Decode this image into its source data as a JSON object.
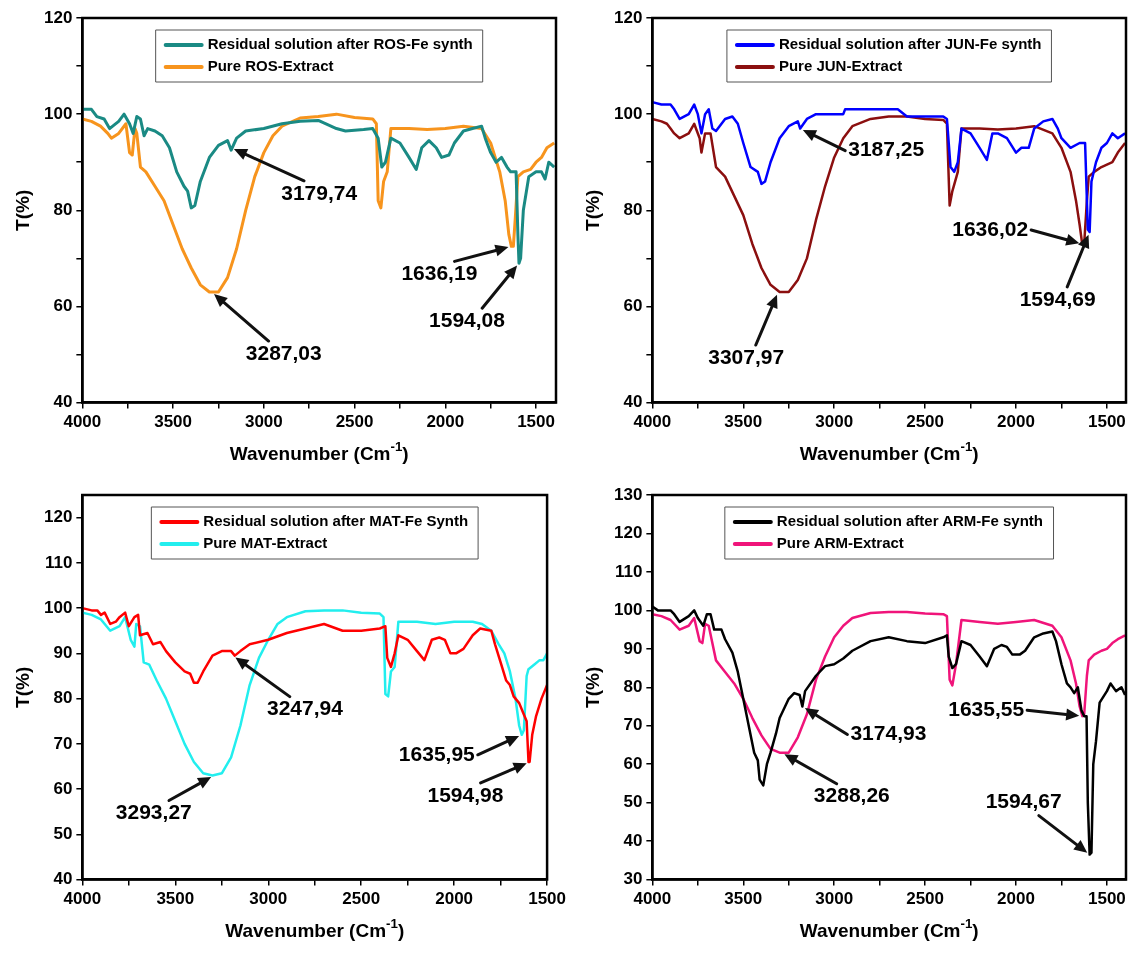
{
  "chart_data": [
    {
      "type": "line",
      "xlabel": "Wavenumber (Cm$^{-1}$)",
      "ylabel": "T(%)",
      "legend": "top",
      "xlim": [
        4000,
        1390
      ],
      "xticks": [
        4000,
        {
          "value": 3750,
          "label": null
        },
        3500,
        {
          "value": 3250,
          "label": null
        },
        3000,
        {
          "value": 2750,
          "label": null
        },
        2500,
        {
          "value": 2250,
          "label": null
        },
        2000,
        {
          "value": 1750,
          "label": null
        },
        1500
      ],
      "ylim": [
        40,
        120
      ],
      "yticks": [
        40,
        {
          "value": 50,
          "label": null
        },
        60,
        {
          "value": 70,
          "label": null
        },
        80,
        {
          "value": 90,
          "label": null
        },
        100,
        {
          "value": 110,
          "label": null
        },
        120
      ],
      "series": [
        {
          "name": "Residual solution after ROS-Fe synth",
          "color": "#1a8a84",
          "x": [
            4000,
            3950,
            3920,
            3880,
            3850,
            3800,
            3770,
            3740,
            3720,
            3700,
            3680,
            3660,
            3640,
            3600,
            3560,
            3520,
            3480,
            3440,
            3420,
            3400,
            3380,
            3350,
            3300,
            3250,
            3200,
            3180,
            3150,
            3100,
            3000,
            2900,
            2800,
            2700,
            2600,
            2550,
            2450,
            2400,
            2370,
            2350,
            2330,
            2300,
            2250,
            2200,
            2160,
            2130,
            2090,
            2050,
            2020,
            1980,
            1950,
            1900,
            1850,
            1800,
            1780,
            1750,
            1720,
            1690,
            1660,
            1640,
            1610,
            1600,
            1594,
            1585,
            1570,
            1540,
            1500,
            1470,
            1450,
            1430,
            1400
          ],
          "values": [
            101,
            101,
            99.5,
            99,
            97,
            98.5,
            100,
            98,
            96,
            99.5,
            99,
            95.5,
            97,
            96.5,
            95.5,
            93,
            88,
            85,
            84,
            80.5,
            81,
            86,
            91,
            93.5,
            94.5,
            92.5,
            95,
            96.5,
            97,
            98,
            98.5,
            98.7,
            97,
            96.5,
            96.8,
            97,
            95,
            89,
            90,
            95,
            94,
            91,
            88.5,
            93,
            94.5,
            93,
            91,
            91.5,
            94,
            96.5,
            97,
            97.5,
            95,
            92,
            90,
            91,
            89,
            88,
            88,
            75,
            69,
            70,
            80,
            87,
            88,
            88,
            86.5,
            90,
            89
          ]
        },
        {
          "name": "Pure ROS-Extract",
          "color": "#f7941d",
          "x": [
            4000,
            3950,
            3900,
            3860,
            3840,
            3800,
            3760,
            3740,
            3725,
            3710,
            3700,
            3680,
            3650,
            3600,
            3550,
            3500,
            3450,
            3400,
            3350,
            3300,
            3250,
            3200,
            3150,
            3100,
            3050,
            3000,
            2950,
            2900,
            2800,
            2700,
            2600,
            2500,
            2400,
            2380,
            2370,
            2355,
            2340,
            2320,
            2300,
            2200,
            2100,
            2000,
            1900,
            1800,
            1750,
            1700,
            1670,
            1650,
            1636,
            1625,
            1615,
            1600,
            1570,
            1530,
            1500,
            1470,
            1440,
            1400
          ],
          "values": [
            99,
            98.5,
            97.5,
            96,
            95,
            96,
            98,
            92,
            91.5,
            97,
            96,
            89,
            88,
            85,
            82,
            77,
            72,
            68,
            64.5,
            63,
            63,
            66,
            72,
            80,
            87,
            92,
            95.5,
            97.5,
            99.2,
            99.5,
            100,
            99.3,
            99,
            98,
            82,
            80.5,
            86,
            88,
            97,
            97,
            96.8,
            97,
            97.5,
            97,
            94,
            88,
            82,
            75,
            72.5,
            72.5,
            78,
            87,
            88,
            88.5,
            90,
            91,
            93,
            94
          ]
        }
      ],
      "annotations": [
        {
          "text": "3179,74",
          "x": 3180,
          "y": 93
        },
        {
          "text": "3287,03",
          "x": 3287,
          "y": 63
        },
        {
          "text": "1636,19",
          "x": 1636,
          "y": 72.5
        },
        {
          "text": "1594,08",
          "x": 1594,
          "y": 69
        }
      ]
    },
    {
      "type": "line",
      "xlabel": "Wavenumber (Cm$^{-1}$)",
      "ylabel": "T(%)",
      "legend": "top",
      "xlim": [
        4000,
        1395
      ],
      "xticks": [
        4000,
        {
          "value": 3750,
          "label": null
        },
        3500,
        {
          "value": 3250,
          "label": null
        },
        3000,
        {
          "value": 2750,
          "label": null
        },
        2500,
        {
          "value": 2250,
          "label": null
        },
        2000,
        {
          "value": 1750,
          "label": null
        },
        1500
      ],
      "ylim": [
        40,
        120
      ],
      "yticks": [
        40,
        {
          "value": 50,
          "label": null
        },
        60,
        {
          "value": 70,
          "label": null
        },
        80,
        {
          "value": 90,
          "label": null
        },
        100,
        {
          "value": 110,
          "label": null
        },
        120
      ],
      "series": [
        {
          "name": "Residual solution after JUN-Fe synth",
          "color": "#0000ff",
          "x": [
            4000,
            3950,
            3900,
            3880,
            3850,
            3800,
            3770,
            3750,
            3730,
            3710,
            3690,
            3670,
            3650,
            3600,
            3560,
            3530,
            3500,
            3460,
            3420,
            3400,
            3380,
            3350,
            3300,
            3250,
            3200,
            3187,
            3150,
            3100,
            2950,
            2940,
            2650,
            2600,
            2400,
            2380,
            2360,
            2340,
            2320,
            2300,
            2250,
            2200,
            2160,
            2130,
            2100,
            2050,
            2000,
            1970,
            1930,
            1900,
            1850,
            1800,
            1770,
            1750,
            1700,
            1650,
            1620,
            1605,
            1595,
            1585,
            1560,
            1530,
            1500,
            1470,
            1440,
            1400
          ],
          "values": [
            102.5,
            102,
            102,
            101,
            99,
            100,
            102,
            100,
            96,
            100,
            101,
            97,
            96.5,
            99,
            99.5,
            98,
            94,
            89,
            88,
            85.5,
            86,
            90,
            95,
            97.5,
            98.5,
            97,
            99,
            100,
            100,
            101,
            101,
            99.5,
            99.5,
            99,
            89,
            88,
            90,
            97,
            96,
            93,
            90.5,
            96,
            96,
            95,
            92,
            93,
            93,
            97,
            98.5,
            99,
            97,
            95,
            93,
            94,
            94,
            76,
            75.5,
            86,
            90,
            93,
            94,
            96,
            95,
            96
          ]
        },
        {
          "name": "Pure JUN-Extract",
          "color": "#8b0f0f",
          "x": [
            4000,
            3950,
            3920,
            3900,
            3880,
            3850,
            3800,
            3770,
            3740,
            3730,
            3710,
            3680,
            3650,
            3600,
            3550,
            3500,
            3450,
            3400,
            3350,
            3300,
            3250,
            3200,
            3150,
            3100,
            3050,
            3000,
            2950,
            2900,
            2800,
            2700,
            2600,
            2500,
            2400,
            2380,
            2365,
            2350,
            2320,
            2300,
            2200,
            2100,
            2000,
            1900,
            1800,
            1750,
            1700,
            1670,
            1650,
            1636,
            1625,
            1610,
            1600,
            1570,
            1530,
            1500,
            1470,
            1440,
            1400
          ],
          "values": [
            99,
            98.5,
            98,
            97,
            96,
            95,
            96,
            98,
            95,
            92,
            96,
            96,
            89,
            87,
            83,
            79,
            73,
            68,
            64.5,
            63,
            63,
            65.5,
            70,
            78,
            85,
            91,
            95,
            97.5,
            99,
            99.5,
            99.5,
            99,
            98.8,
            98,
            81,
            84,
            88,
            97,
            97,
            96.8,
            97,
            97.5,
            96,
            93,
            88,
            82,
            77,
            73,
            73,
            82,
            87,
            88,
            89,
            89.5,
            90,
            92,
            94
          ]
        }
      ],
      "annotations": [
        {
          "text": "3187,25",
          "x": 3187,
          "y": 97
        },
        {
          "text": "3307,97",
          "x": 3308,
          "y": 63
        },
        {
          "text": "1636,02",
          "x": 1636,
          "y": 73
        },
        {
          "text": "1594,69",
          "x": 1595,
          "y": 75.5
        }
      ]
    },
    {
      "type": "line",
      "xlabel": "Wavenumber (Cm$^{-1}$)",
      "ylabel": "T(%)",
      "legend": "top",
      "xlim": [
        4000,
        1500
      ],
      "xticks": [
        4000,
        {
          "value": 3750,
          "label": null
        },
        3500,
        {
          "value": 3250,
          "label": null
        },
        3000,
        {
          "value": 2750,
          "label": null
        },
        2500,
        {
          "value": 2250,
          "label": null
        },
        2000,
        {
          "value": 1750,
          "label": null
        },
        1500
      ],
      "ylim": [
        40,
        125
      ],
      "yticks": [
        40,
        50,
        60,
        70,
        80,
        90,
        100,
        110,
        120
      ],
      "series": [
        {
          "name": "Residual solution after MAT-Fe Synth",
          "color": "#ff0000",
          "x": [
            4000,
            3950,
            3920,
            3900,
            3880,
            3850,
            3820,
            3800,
            3770,
            3750,
            3720,
            3700,
            3690,
            3650,
            3620,
            3580,
            3550,
            3500,
            3450,
            3420,
            3400,
            3380,
            3350,
            3300,
            3250,
            3200,
            3180,
            3150,
            3100,
            3000,
            2900,
            2800,
            2700,
            2600,
            2500,
            2400,
            2370,
            2360,
            2340,
            2320,
            2300,
            2250,
            2200,
            2160,
            2120,
            2080,
            2050,
            2020,
            1990,
            1950,
            1900,
            1860,
            1800,
            1780,
            1750,
            1720,
            1700,
            1680,
            1650,
            1630,
            1610,
            1600,
            1594,
            1580,
            1560,
            1530,
            1500
          ],
          "values": [
            100,
            99.5,
            99.5,
            98.5,
            99,
            96.5,
            97,
            98,
            99,
            96,
            98,
            98.5,
            94,
            94.5,
            92,
            92.5,
            90.5,
            88,
            86,
            85.5,
            83.5,
            83.5,
            86,
            89.5,
            90.5,
            90.5,
            89.5,
            90.5,
            92,
            93,
            94.5,
            95.5,
            96.5,
            95,
            95,
            95.5,
            96,
            89,
            87,
            90,
            94,
            93,
            90.5,
            88.5,
            93,
            93.5,
            93,
            90,
            90,
            91,
            94,
            95.5,
            95,
            92,
            88,
            84,
            83,
            80.5,
            79,
            77,
            75,
            66,
            66,
            72,
            76,
            80,
            83
          ]
        },
        {
          "name": "Pure MAT-Extract",
          "color": "#22eeee",
          "x": [
            4000,
            3950,
            3900,
            3850,
            3800,
            3770,
            3740,
            3720,
            3710,
            3690,
            3670,
            3640,
            3600,
            3550,
            3500,
            3450,
            3400,
            3350,
            3300,
            3250,
            3200,
            3150,
            3100,
            3050,
            3000,
            2950,
            2900,
            2800,
            2700,
            2600,
            2500,
            2400,
            2380,
            2370,
            2355,
            2340,
            2320,
            2300,
            2200,
            2100,
            2000,
            1900,
            1850,
            1800,
            1760,
            1730,
            1700,
            1670,
            1650,
            1636,
            1625,
            1610,
            1600,
            1570,
            1540,
            1520,
            1500
          ],
          "values": [
            99,
            98.5,
            97.5,
            95,
            96,
            98,
            93,
            91.5,
            96.5,
            96,
            88,
            87.5,
            84,
            80,
            75,
            70,
            66,
            63.5,
            63,
            63.5,
            67,
            74,
            83,
            89,
            93,
            96.5,
            98,
            99.3,
            99.5,
            99.5,
            99,
            98.8,
            98,
            81,
            80.5,
            86,
            87,
            97,
            97,
            96.5,
            97,
            97,
            96.5,
            95,
            92,
            90,
            86,
            80,
            74,
            72,
            73,
            85,
            86.5,
            87.5,
            88.5,
            88.5,
            90
          ]
        }
      ],
      "annotations": [
        {
          "text": "3247,94",
          "x": 3190,
          "y": 89.5
        },
        {
          "text": "3293,27",
          "x": 3293,
          "y": 63
        },
        {
          "text": "1635,95",
          "x": 1636,
          "y": 72
        },
        {
          "text": "1594,98",
          "x": 1595,
          "y": 66
        }
      ]
    },
    {
      "type": "line",
      "xlabel": "Wavenumber (Cm$^{-1}$)",
      "ylabel": "T(%)",
      "legend": "top",
      "xlim": [
        4000,
        1395
      ],
      "xticks": [
        4000,
        {
          "value": 3750,
          "label": null
        },
        3500,
        {
          "value": 3250,
          "label": null
        },
        3000,
        {
          "value": 2750,
          "label": null
        },
        2500,
        {
          "value": 2250,
          "label": null
        },
        2000,
        {
          "value": 1750,
          "label": null
        },
        1500
      ],
      "ylim": [
        30,
        130
      ],
      "yticks": [
        30,
        40,
        50,
        60,
        70,
        80,
        90,
        100,
        110,
        120,
        130
      ],
      "series": [
        {
          "name": "Residual solution after ARM-Fe synth",
          "color": "#000000",
          "x": [
            4000,
            3970,
            3900,
            3880,
            3850,
            3800,
            3770,
            3750,
            3720,
            3700,
            3680,
            3660,
            3620,
            3600,
            3560,
            3530,
            3500,
            3470,
            3440,
            3420,
            3410,
            3390,
            3370,
            3350,
            3320,
            3300,
            3250,
            3220,
            3190,
            3175,
            3160,
            3100,
            3050,
            3000,
            2950,
            2900,
            2800,
            2700,
            2600,
            2500,
            2400,
            2380,
            2370,
            2350,
            2330,
            2300,
            2250,
            2200,
            2160,
            2120,
            2080,
            2050,
            2020,
            1980,
            1950,
            1900,
            1850,
            1800,
            1780,
            1750,
            1720,
            1700,
            1680,
            1660,
            1640,
            1625,
            1612,
            1605,
            1595,
            1585,
            1575,
            1560,
            1540,
            1500,
            1480,
            1450,
            1420,
            1400
          ],
          "values": [
            101,
            100,
            100,
            99,
            97,
            98.5,
            100,
            98,
            96,
            99,
            99,
            95,
            95,
            92.5,
            89,
            84,
            77,
            70,
            63,
            61,
            56,
            54.5,
            60,
            63,
            68,
            72,
            77,
            78.5,
            78,
            75,
            79,
            83,
            85.5,
            86,
            87.5,
            89.5,
            92,
            93,
            92,
            91.5,
            93,
            93.5,
            88,
            85,
            86,
            92,
            91,
            88,
            85.5,
            90,
            91,
            90.5,
            88.5,
            88.5,
            89.5,
            93,
            94,
            94.5,
            92,
            86,
            81,
            80,
            78.5,
            80,
            74,
            72.5,
            72.5,
            50,
            36.5,
            37,
            60,
            66,
            76,
            79,
            81,
            79,
            80,
            78
          ]
        },
        {
          "name": "Pure ARM-Extract",
          "color": "#f0147a",
          "x": [
            4000,
            3950,
            3900,
            3850,
            3800,
            3770,
            3740,
            3725,
            3710,
            3690,
            3650,
            3600,
            3550,
            3500,
            3450,
            3400,
            3350,
            3300,
            3250,
            3200,
            3150,
            3100,
            3050,
            3000,
            2950,
            2900,
            2800,
            2700,
            2600,
            2500,
            2400,
            2380,
            2365,
            2350,
            2330,
            2300,
            2200,
            2100,
            2000,
            1900,
            1800,
            1750,
            1700,
            1670,
            1650,
            1635,
            1625,
            1610,
            1600,
            1570,
            1530,
            1500,
            1470,
            1440,
            1400
          ],
          "values": [
            99,
            98.5,
            97.5,
            95,
            96,
            98,
            92,
            91.5,
            96.5,
            96,
            87,
            84,
            81,
            77,
            72,
            67.5,
            64,
            63,
            63,
            67,
            73,
            82,
            88,
            93,
            96,
            98,
            99.3,
            99.6,
            99.6,
            99.2,
            99,
            98.5,
            82,
            80.5,
            86,
            97.5,
            97,
            96.5,
            97,
            97.5,
            96,
            93,
            87,
            81,
            75,
            72.5,
            73,
            83,
            87,
            88.5,
            89.5,
            90,
            91.5,
            92.5,
            93.5
          ]
        }
      ],
      "annotations": [
        {
          "text": "3174,93",
          "x": 3175,
          "y": 75
        },
        {
          "text": "3288,26",
          "x": 3288,
          "y": 63
        },
        {
          "text": "1635,55",
          "x": 1636,
          "y": 72.5
        },
        {
          "text": "1594,67",
          "x": 1595,
          "y": 36.5
        }
      ]
    }
  ]
}
